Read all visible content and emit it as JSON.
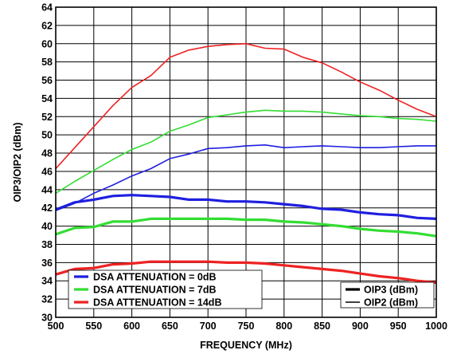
{
  "chart_data": {
    "type": "line",
    "xlabel": "FREQUENCY (MHz)",
    "ylabel": "OIP3/OIP2 (dBm)",
    "xlim": [
      500,
      1000
    ],
    "ylim": [
      30,
      64
    ],
    "xticks": [
      500,
      550,
      600,
      650,
      700,
      750,
      800,
      850,
      900,
      950,
      1000
    ],
    "yticks": [
      30,
      32,
      34,
      36,
      38,
      40,
      42,
      44,
      46,
      48,
      50,
      52,
      54,
      56,
      58,
      60,
      62,
      64
    ],
    "grid": true,
    "legend_placement": "bottom",
    "legend_colors": [
      {
        "name": "DSA ATTENUATION = 0dB",
        "color": "#1f1fe0"
      },
      {
        "name": "DSA ATTENUATION = 7dB",
        "color": "#33dd33"
      },
      {
        "name": "DSA ATTENUATION = 14dB",
        "color": "#ee2222"
      }
    ],
    "legend_styles": [
      {
        "name": "OIP3 (dBm)",
        "style": "thick"
      },
      {
        "name": "OIP2 (dBm)",
        "style": "thin"
      }
    ],
    "x": [
      500,
      525,
      550,
      575,
      600,
      625,
      650,
      675,
      700,
      725,
      750,
      775,
      800,
      825,
      850,
      875,
      900,
      925,
      950,
      975,
      1000
    ],
    "series": [
      {
        "color": "#ee2222",
        "width": 1.6,
        "values": [
          46.3,
          48.6,
          50.9,
          53.2,
          55.2,
          56.5,
          58.5,
          59.3,
          59.7,
          59.9,
          60.0,
          59.5,
          59.4,
          58.5,
          57.9,
          56.9,
          55.8,
          54.9,
          53.8,
          52.8,
          52.0
        ]
      },
      {
        "color": "#33dd33",
        "width": 1.6,
        "values": [
          43.6,
          44.9,
          46.1,
          47.3,
          48.4,
          49.2,
          50.4,
          51.1,
          51.9,
          52.2,
          52.5,
          52.7,
          52.6,
          52.6,
          52.5,
          52.3,
          52.1,
          52.0,
          51.8,
          51.7,
          51.5
        ]
      },
      {
        "color": "#1f1fe0",
        "width": 1.6,
        "values": [
          41.7,
          42.5,
          43.6,
          44.5,
          45.5,
          46.3,
          47.4,
          47.9,
          48.5,
          48.6,
          48.8,
          48.9,
          48.6,
          48.7,
          48.8,
          48.7,
          48.6,
          48.6,
          48.7,
          48.8,
          48.8
        ]
      },
      {
        "color": "#1f1fe0",
        "width": 3.2,
        "values": [
          41.8,
          42.6,
          42.9,
          43.3,
          43.4,
          43.3,
          43.2,
          42.9,
          42.9,
          42.7,
          42.7,
          42.6,
          42.4,
          42.2,
          41.9,
          41.8,
          41.5,
          41.3,
          41.2,
          40.9,
          40.8
        ]
      },
      {
        "color": "#33dd33",
        "width": 3.2,
        "values": [
          39.1,
          39.8,
          39.9,
          40.5,
          40.5,
          40.8,
          40.8,
          40.8,
          40.8,
          40.8,
          40.7,
          40.7,
          40.5,
          40.4,
          40.2,
          40.0,
          39.7,
          39.5,
          39.4,
          39.2,
          38.9
        ]
      },
      {
        "color": "#ee2222",
        "width": 3.2,
        "values": [
          34.7,
          35.3,
          35.4,
          35.8,
          35.9,
          36.1,
          36.1,
          36.1,
          36.1,
          36.0,
          36.0,
          35.9,
          35.7,
          35.5,
          35.3,
          35.1,
          34.8,
          34.5,
          34.3,
          34.0,
          33.8
        ]
      }
    ]
  }
}
